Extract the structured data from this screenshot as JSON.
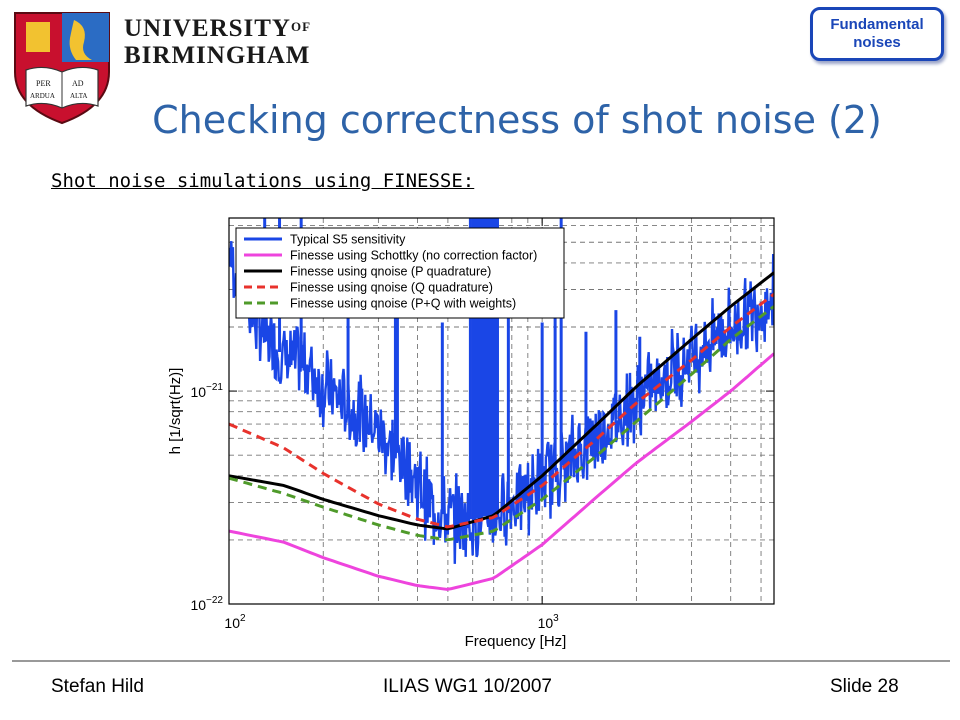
{
  "header": {
    "crest_text": [
      "PER",
      "AD",
      "ARDUA",
      "ALTA"
    ],
    "university_line1": "UNIVERSITY",
    "university_of": "OF",
    "university_line2": "BIRMINGHAM",
    "badge_line1": "Fundamental",
    "badge_line2": "noises"
  },
  "slide": {
    "title": "Checking correctness of shot noise (2)",
    "subtitle": "Shot noise simulations using FINESSE:"
  },
  "footer": {
    "author": "Stefan Hild",
    "event": "ILIAS WG1 10/2007",
    "slide_number": "Slide 28"
  },
  "colors": {
    "title": "#2e63a8",
    "badge": "#1a46b8",
    "s5": "#1a46e6",
    "schottky": "#ee44dd",
    "p_quad": "#000000",
    "q_quad": "#e8322c",
    "pq_weights": "#4f9a2a"
  },
  "chart_data": {
    "type": "line",
    "xlabel": "Frequency [Hz]",
    "ylabel": "h [1/sqrt(Hz)]",
    "xscale": "log",
    "yscale": "log",
    "xlim": [
      100,
      5500
    ],
    "ylim": [
      1e-22,
      6.5e-21
    ],
    "grid": true,
    "legend_position": "top-left",
    "xtick_labels": [
      {
        "base": "10",
        "exp": "2"
      },
      {
        "base": "10",
        "exp": "3"
      }
    ],
    "ytick_labels": [
      {
        "base": "10",
        "exp": "−22"
      },
      {
        "base": "10",
        "exp": "−21"
      }
    ],
    "series": [
      {
        "name": "Typical S5 sensitivity",
        "color": "#1a46e6",
        "style": "solid",
        "x": [
          100,
          110,
          130,
          150,
          180,
          200,
          250,
          300,
          350,
          400,
          450,
          500,
          600,
          700,
          800,
          1000,
          1500,
          2000,
          3000,
          4000,
          5500
        ],
        "y": [
          4.5e-21,
          3e-21,
          1.8e-21,
          1.45e-21,
          1.3e-21,
          1.05e-21,
          8e-22,
          6.5e-22,
          5e-22,
          3.7e-22,
          2.8e-22,
          2.55e-22,
          2.5e-22,
          2.65e-22,
          3e-22,
          3.8e-22,
          6.2e-22,
          9e-22,
          1.5e-21,
          2e-21,
          2.8e-21
        ],
        "peaks": [
          {
            "x": 130,
            "y": 6.5e-21
          },
          {
            "x": 145,
            "y": 6.5e-21
          },
          {
            "x": 170,
            "y": 6.5e-21
          },
          {
            "x": 240,
            "y": 4.2e-21
          },
          {
            "x": 340,
            "y": 3e-21
          },
          {
            "x": 345,
            "y": 2.2e-21
          },
          {
            "x": 480,
            "y": 2.1e-21
          },
          {
            "x": 590,
            "y": 6.5e-21
          },
          {
            "x": 620,
            "y": 6.5e-21
          },
          {
            "x": 680,
            "y": 6.5e-21
          },
          {
            "x": 720,
            "y": 6.5e-21
          },
          {
            "x": 780,
            "y": 2.6e-21
          },
          {
            "x": 1000,
            "y": 2.1e-21
          },
          {
            "x": 1100,
            "y": 2.8e-21
          },
          {
            "x": 1150,
            "y": 6.5e-21
          },
          {
            "x": 1380,
            "y": 1.9e-21
          },
          {
            "x": 1720,
            "y": 2.4e-21
          },
          {
            "x": 2050,
            "y": 1.8e-21
          }
        ]
      },
      {
        "name": "Finesse using Schottky (no correction factor)",
        "color": "#ee44dd",
        "style": "solid",
        "x": [
          100,
          150,
          200,
          300,
          400,
          500,
          700,
          1000,
          1500,
          2000,
          3000,
          4000,
          5500
        ],
        "y": [
          2.2e-22,
          1.95e-22,
          1.65e-22,
          1.35e-22,
          1.22e-22,
          1.17e-22,
          1.32e-22,
          1.9e-22,
          3.2e-22,
          4.6e-22,
          7.2e-22,
          1e-21,
          1.5e-21
        ]
      },
      {
        "name": "Finesse using qnoise (P quadrature)",
        "color": "#000000",
        "style": "solid",
        "x": [
          100,
          150,
          200,
          300,
          400,
          500,
          700,
          1000,
          1500,
          2000,
          3000,
          4000,
          5500
        ],
        "y": [
          4e-22,
          3.6e-22,
          3.1e-22,
          2.6e-22,
          2.35e-22,
          2.25e-22,
          2.6e-22,
          4e-22,
          7e-22,
          1.05e-21,
          1.75e-21,
          2.5e-21,
          3.6e-21
        ]
      },
      {
        "name": "Finesse using qnoise (Q quadrature)",
        "color": "#e8322c",
        "style": "dashed",
        "x": [
          100,
          150,
          200,
          300,
          400,
          500,
          700,
          1000,
          1500,
          2000,
          3000,
          4000,
          5500
        ],
        "y": [
          7e-22,
          5.4e-22,
          4.1e-22,
          2.95e-22,
          2.5e-22,
          2.3e-22,
          2.55e-22,
          3.6e-22,
          6e-22,
          8.8e-22,
          1.4e-21,
          2e-21,
          2.85e-21
        ]
      },
      {
        "name": "Finesse using qnoise (P+Q with weights)",
        "color": "#4f9a2a",
        "style": "dashed",
        "x": [
          100,
          150,
          200,
          300,
          400,
          500,
          700,
          1000,
          1500,
          2000,
          3000,
          4000,
          5500
        ],
        "y": [
          3.9e-22,
          3.3e-22,
          2.85e-22,
          2.35e-22,
          2.1e-22,
          2e-22,
          2.2e-22,
          3.1e-22,
          5e-22,
          7.2e-22,
          1.2e-21,
          1.75e-21,
          2.5e-21
        ]
      }
    ]
  }
}
